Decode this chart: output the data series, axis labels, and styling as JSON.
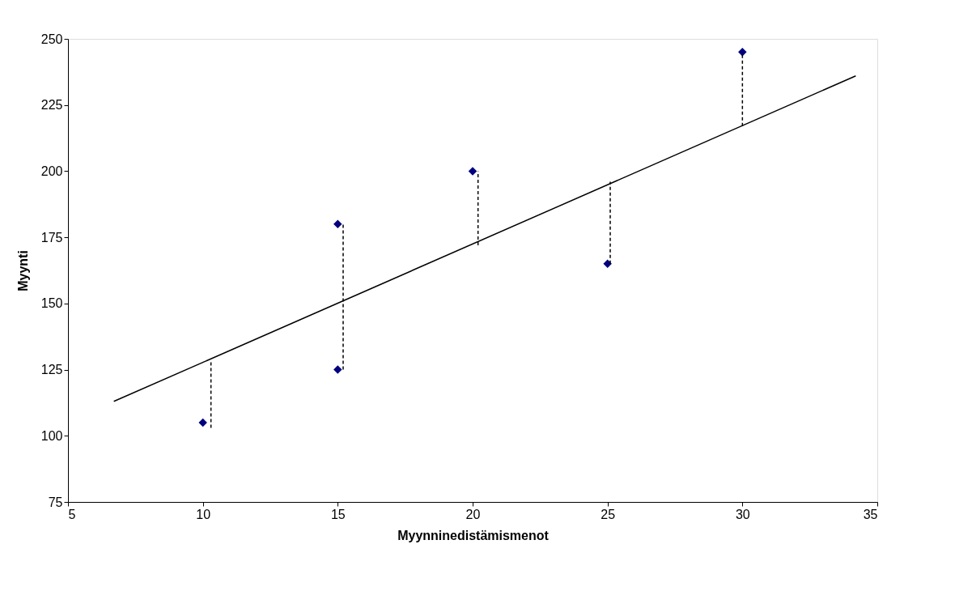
{
  "chart_data": {
    "type": "scatter",
    "xlabel": "Myynninedistämismenot",
    "ylabel": "Myynti",
    "xlim": [
      5,
      35
    ],
    "xticks": [
      5,
      10,
      15,
      20,
      25,
      30,
      35
    ],
    "ylim": [
      75,
      250
    ],
    "yticks": [
      75,
      100,
      125,
      150,
      175,
      200,
      225,
      250
    ],
    "series": [
      {
        "color": "#000080",
        "marker": "diamond",
        "x": [
          10,
          15,
          15,
          20,
          25,
          30
        ],
        "values": [
          105,
          180,
          125,
          200,
          165,
          245
        ]
      },
      {
        "type": "line",
        "color": "#000000",
        "line_style": "solid",
        "x": [
          6.7,
          34.2
        ],
        "values": [
          113,
          236
        ]
      },
      {
        "type": "line",
        "color": "#000000",
        "line_style": "dashed",
        "x": [
          10.3,
          10.3
        ],
        "values": [
          103,
          128
        ]
      },
      {
        "type": "line",
        "color": "#000000",
        "line_style": "dashed",
        "x": [
          15.2,
          15.2
        ],
        "values": [
          125,
          180
        ]
      },
      {
        "type": "line",
        "color": "#000000",
        "line_style": "dashed",
        "x": [
          20.2,
          20.2
        ],
        "values": [
          172,
          200
        ]
      },
      {
        "type": "line",
        "color": "#000000",
        "line_style": "dashed",
        "x": [
          25.1,
          25.1
        ],
        "values": [
          165,
          196
        ]
      },
      {
        "type": "line",
        "color": "#000000",
        "line_style": "dashed",
        "x": [
          30,
          30
        ],
        "values": [
          217,
          245
        ]
      }
    ]
  }
}
